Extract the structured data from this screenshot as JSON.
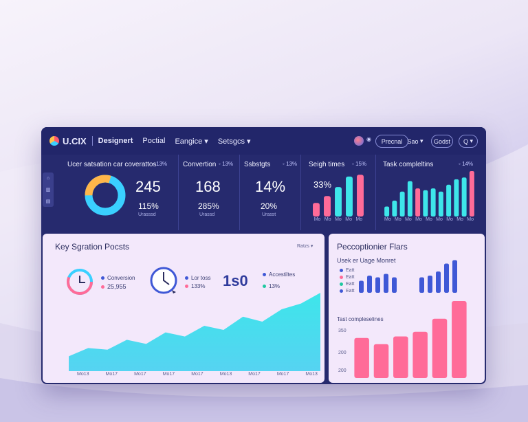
{
  "topbar": {
    "brand": "U.CIX",
    "nav": [
      "Designert",
      "Poctial",
      "Eangice",
      "Setsgcs"
    ],
    "pills": [
      "Precnal",
      "Sao",
      "Godst",
      "Q"
    ]
  },
  "kpis": [
    {
      "title": "Ucer satsation car coverattos",
      "pct": "13%",
      "value": "245",
      "sub_value": "115%",
      "sub_label": "Urasssd"
    },
    {
      "title": "Convertion",
      "pct": "13%",
      "value": "168",
      "sub_value": "285%",
      "sub_label": "Urassd"
    },
    {
      "title": "Ssbstgts",
      "pct": "13%",
      "value": "14%",
      "sub_value": "20%",
      "sub_label": "Urasst"
    },
    {
      "title": "Seigh times",
      "pct": "15%",
      "value": "33%",
      "axis": [
        "Mo",
        "Mo",
        "Mo",
        "Mo",
        "Mo"
      ]
    },
    {
      "title": "Task compleltins",
      "pct": "14%",
      "axis": [
        "Mo",
        "Mo",
        "Mo",
        "Mo",
        "Mo",
        "Mo",
        "Mo",
        "Mo",
        "Mo"
      ]
    }
  ],
  "key_panel": {
    "title": "Key Sgration Pocsts",
    "dropdown": "Ratzs",
    "stats": [
      {
        "label": "Conversion",
        "value": "25,955"
      },
      {
        "label": "Lor toss",
        "value": "133%"
      },
      {
        "label": "",
        "value": "1s0"
      },
      {
        "label": "Accestiltes",
        "value": "13%"
      }
    ],
    "x_axis": [
      "Mo13",
      "Mo17",
      "Mo17",
      "Mo17",
      "Mo17",
      "Mo13",
      "Mo17",
      "Mo17",
      "Mo13"
    ]
  },
  "right_panel": {
    "title": "Peccoptionier Flars",
    "subtitle": "Usek er Uage Monret",
    "legend": [
      "Eatt",
      "Eatt",
      "Eatt",
      "Eatt"
    ],
    "chart2_title": "Tast compleselines",
    "y_ticks": [
      "350",
      "200",
      "200"
    ]
  },
  "colors": {
    "navy": "#262a6e",
    "cyan": "#3ee6ea",
    "pink": "#ff6b98",
    "blue": "#3f58d6",
    "orange": "#ffb64a"
  },
  "chart_data": [
    {
      "type": "bar",
      "title": "Seigh times",
      "values": [
        0.3,
        0.45,
        0.65,
        0.88,
        0.92
      ],
      "colors": [
        "#ff6b98",
        "#ff6b98",
        "#3ee6ea",
        "#3ee6ea",
        "#ff6b98"
      ]
    },
    {
      "type": "bar",
      "title": "Task compleltins",
      "values": [
        0.22,
        0.35,
        0.55,
        0.78,
        0.62,
        0.58,
        0.62,
        0.55,
        0.7,
        0.82,
        0.86,
        1.0
      ],
      "colors": [
        "#3ee6ea",
        "#3ee6ea",
        "#3ee6ea",
        "#3ee6ea",
        "#ff6b98",
        "#3ee6ea",
        "#3ee6ea",
        "#3ee6ea",
        "#3ee6ea",
        "#3ee6ea",
        "#3ee6ea",
        "#ff6b98"
      ]
    },
    {
      "type": "area",
      "title": "Key Sgration Pocsts",
      "values": [
        0.18,
        0.28,
        0.26,
        0.38,
        0.33,
        0.47,
        0.42,
        0.55,
        0.5,
        0.66,
        0.6,
        0.75,
        0.82,
        0.95
      ]
    },
    {
      "type": "bar",
      "title": "Usek er Uage Monret",
      "groups": [
        [
          0.35,
          0.5,
          0.45,
          0.55,
          0.45
        ],
        [
          0.45,
          0.5,
          0.62,
          0.85,
          0.95
        ]
      ]
    },
    {
      "type": "bar",
      "title": "Tast compleselines",
      "values": [
        0.52,
        0.44,
        0.54,
        0.6,
        0.77,
        1.0
      ]
    }
  ]
}
